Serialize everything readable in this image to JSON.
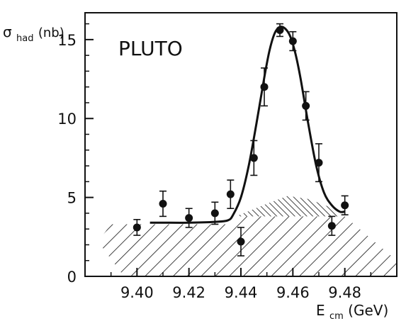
{
  "chart_data": {
    "type": "scatter",
    "title": "PLUTO",
    "xlabel": "E",
    "xlabel_sub": "cm",
    "xlabel_unit": "(GeV)",
    "ylabel": "σ",
    "ylabel_sub": "had",
    "ylabel_unit": "(nb)",
    "xlim": [
      9.38,
      9.5
    ],
    "ylim": [
      0,
      16.7
    ],
    "x_ticks": [
      9.4,
      9.42,
      9.44,
      9.46,
      9.48
    ],
    "x_tick_labels": [
      "9.40",
      "9.42",
      "9.44",
      "9.46",
      "9.48"
    ],
    "y_ticks": [
      0,
      5,
      10,
      15
    ],
    "y_tick_labels": [
      "0",
      "5",
      "10",
      "15"
    ],
    "grid": false,
    "legend": "none",
    "series": [
      {
        "kind": "data-points-with-errors",
        "x": [
          9.4,
          9.41,
          9.42,
          9.43,
          9.436,
          9.44,
          9.445,
          9.449,
          9.455,
          9.46,
          9.465,
          9.47,
          9.475,
          9.48
        ],
        "y": [
          3.1,
          4.6,
          3.7,
          4.0,
          5.2,
          2.2,
          7.5,
          12.0,
          15.6,
          14.9,
          10.8,
          7.2,
          3.2,
          4.5
        ],
        "yerr": [
          0.5,
          0.8,
          0.6,
          0.7,
          0.9,
          0.9,
          1.1,
          1.2,
          0.4,
          0.6,
          0.9,
          1.2,
          0.6,
          0.6
        ]
      },
      {
        "kind": "fit-curve",
        "x": [
          9.405,
          9.41,
          9.42,
          9.43,
          9.435,
          9.437,
          9.44,
          9.443,
          9.446,
          9.449,
          9.451,
          9.453,
          9.455,
          9.457,
          9.459,
          9.461,
          9.463,
          9.466,
          9.469,
          9.472,
          9.475,
          9.478,
          9.48
        ],
        "y": [
          3.4,
          3.4,
          3.4,
          3.45,
          3.55,
          3.9,
          5.0,
          7.0,
          9.7,
          12.6,
          14.3,
          15.4,
          15.8,
          15.7,
          15.2,
          14.1,
          12.5,
          9.6,
          7.0,
          5.3,
          4.5,
          4.1,
          4.1
        ]
      },
      {
        "kind": "background-band",
        "polygon": [
          [
            9.385,
            2.2
          ],
          [
            9.39,
            3.3
          ],
          [
            9.435,
            3.3
          ],
          [
            9.44,
            3.8
          ],
          [
            9.48,
            3.8
          ],
          [
            9.5,
            1.0
          ],
          [
            9.5,
            0.0
          ],
          [
            9.395,
            0.0
          ]
        ]
      },
      {
        "kind": "radiative-tail",
        "polygon": [
          [
            9.438,
            3.8
          ],
          [
            9.45,
            4.6
          ],
          [
            9.458,
            5.1
          ],
          [
            9.466,
            4.9
          ],
          [
            9.474,
            4.4
          ],
          [
            9.479,
            3.8
          ]
        ]
      }
    ]
  }
}
